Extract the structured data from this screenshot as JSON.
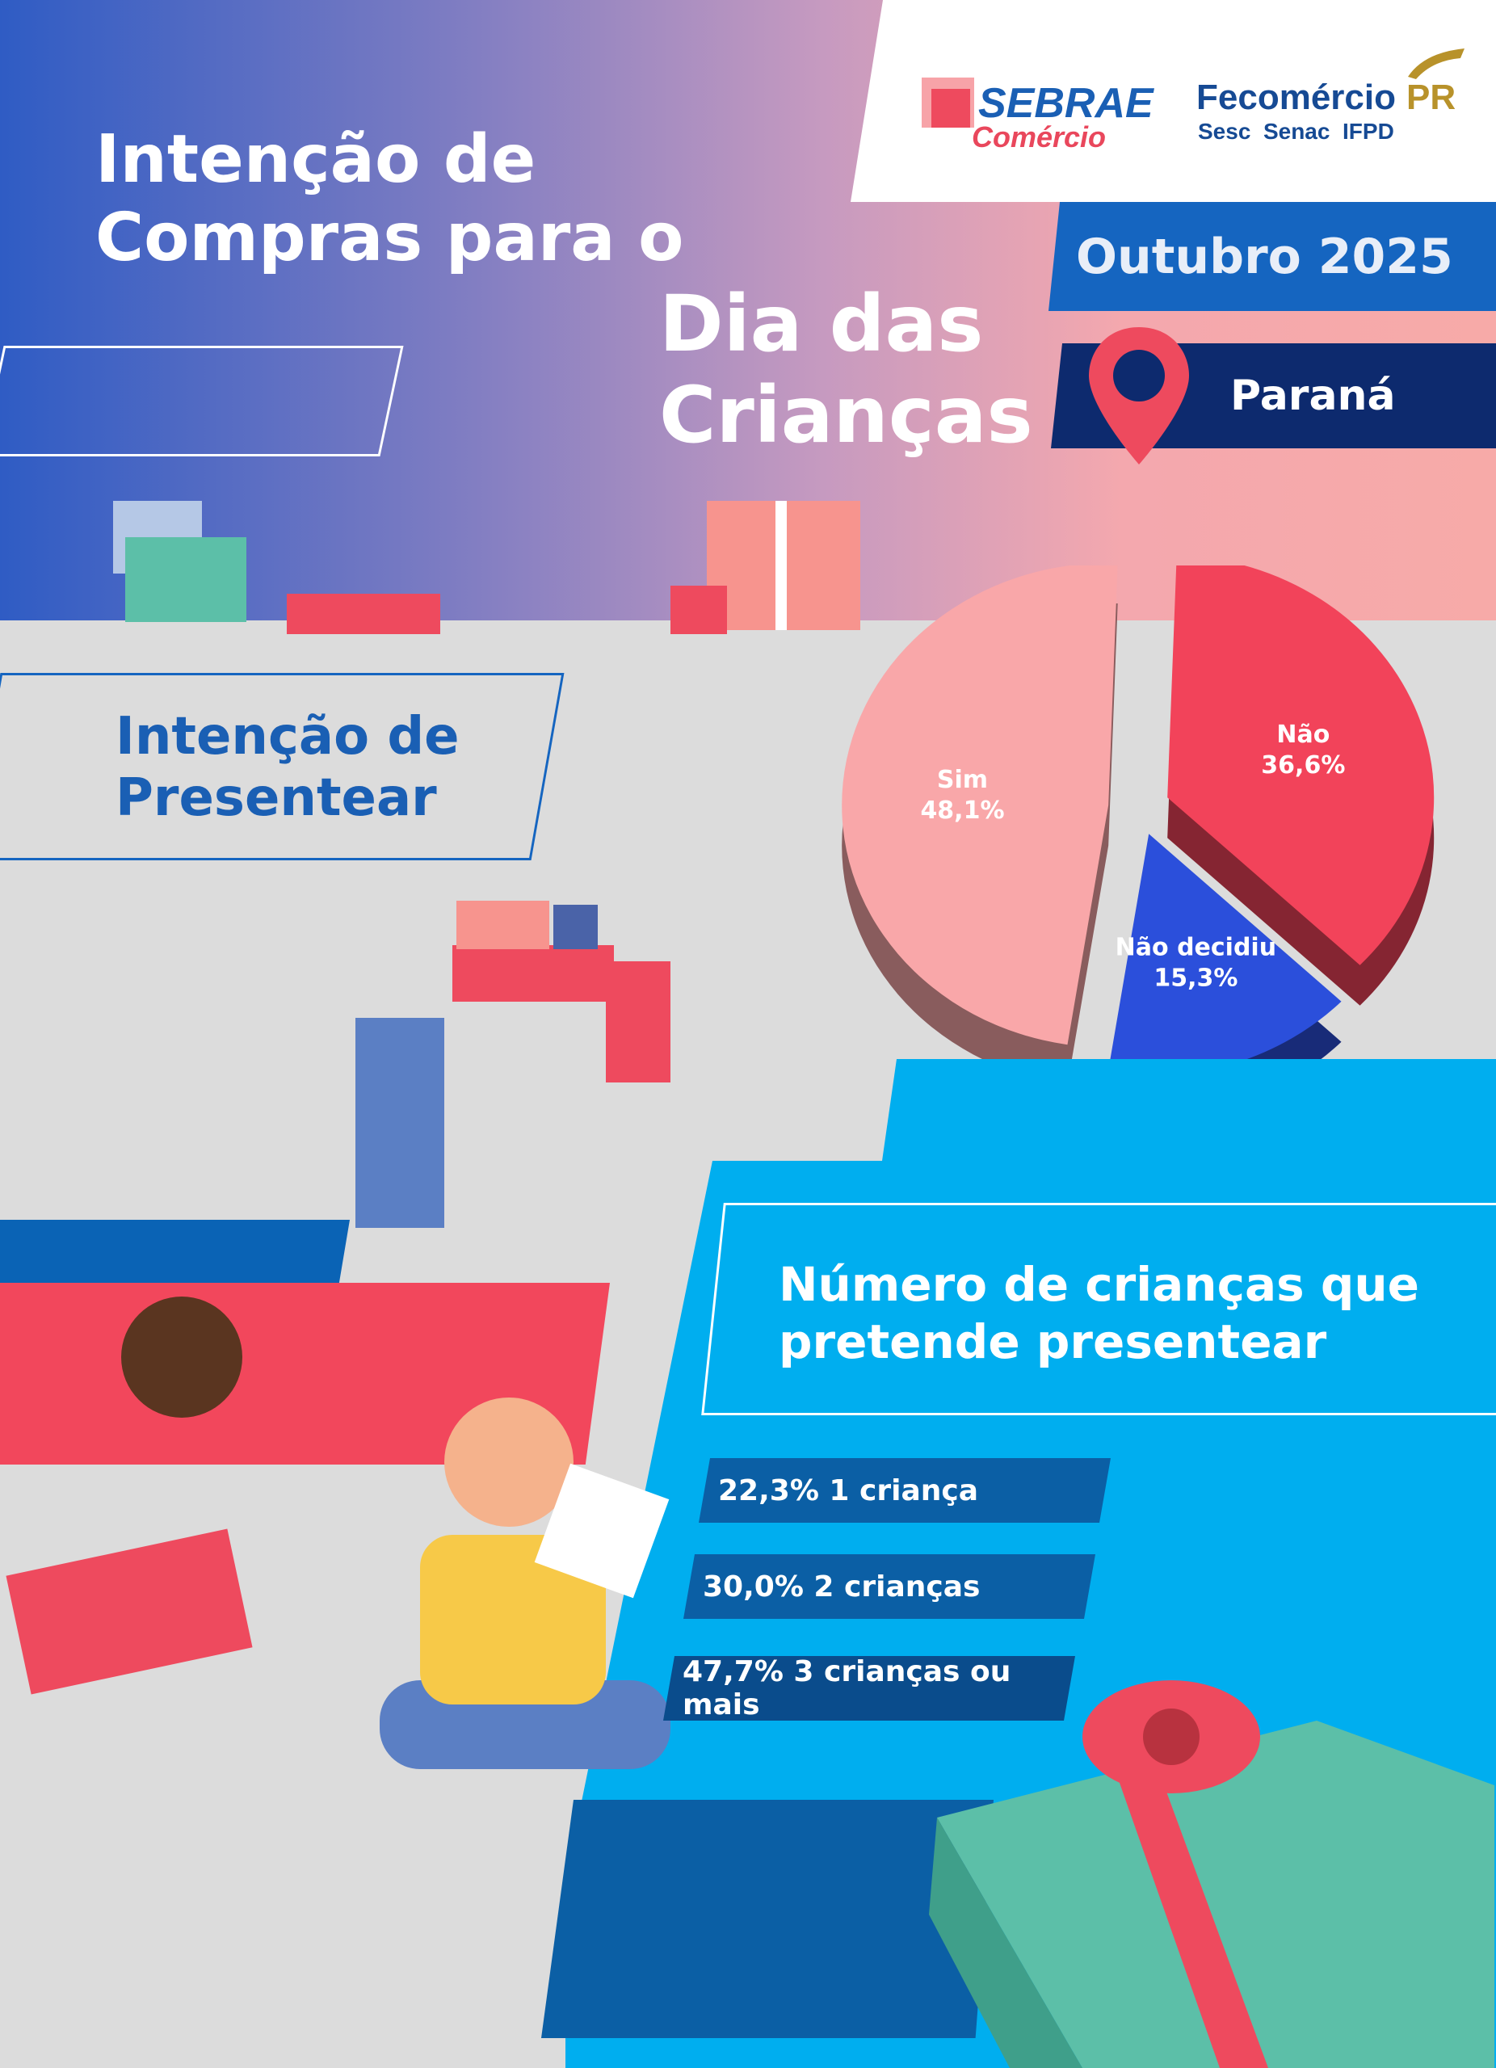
{
  "header": {
    "title_line1": "Intenção de",
    "title_line2": "Compras para o",
    "title_highlight_line1": "Dia das",
    "title_highlight_line2": "Crianças",
    "period": "Outubro 2025",
    "region": "Paraná",
    "logos": {
      "sebrae": "SEBRAE",
      "sebrae_sub": "Comércio",
      "fecomercio": "Fecomércio",
      "fecomercio_pr": "PR",
      "fecomercio_sub": "Sesc  Senac  IFPD"
    }
  },
  "section1": {
    "title_line1": "Intenção de",
    "title_line2": "Presentear"
  },
  "chart_data": {
    "type": "pie",
    "title": "",
    "slices": [
      {
        "label": "Sim",
        "value": 48.1,
        "value_label": "48,1%",
        "color": "#f9a7a9"
      },
      {
        "label": "Não",
        "value": 36.6,
        "value_label": "36,6%",
        "color": "#f2435a"
      },
      {
        "label": "Não decidiu",
        "value": 15.3,
        "value_label": "15,3%",
        "color": "#2b4fdb"
      }
    ]
  },
  "section2": {
    "title_line1": "Número de crianças que",
    "title_line2": "pretende presentear",
    "items": [
      {
        "text": "22,3% 1 criança",
        "value": 22.3
      },
      {
        "text": "30,0% 2 crianças",
        "value": 30.0
      },
      {
        "text": "47,7% 3 crianças ou mais",
        "value": 47.7
      }
    ]
  },
  "colors": {
    "primary_blue": "#1565c0",
    "navy": "#0d2a6e",
    "cyan": "#00aeef",
    "red": "#f2475c",
    "gray_bg": "#dcdcdc"
  }
}
